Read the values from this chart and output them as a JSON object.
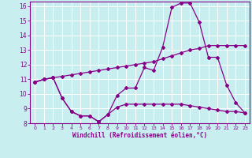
{
  "xlabel": "Windchill (Refroidissement éolien,°C)",
  "xlim": [
    -0.5,
    23.5
  ],
  "ylim": [
    8,
    16.3
  ],
  "yticks": [
    8,
    9,
    10,
    11,
    12,
    13,
    14,
    15,
    16
  ],
  "xticks": [
    0,
    1,
    2,
    3,
    4,
    5,
    6,
    7,
    8,
    9,
    10,
    11,
    12,
    13,
    14,
    15,
    16,
    17,
    18,
    19,
    20,
    21,
    22,
    23
  ],
  "background_color": "#c8eef0",
  "grid_color": "#ffffff",
  "line_color": "#880088",
  "lines": {
    "temp": {
      "x": [
        0,
        1,
        2,
        3,
        4,
        5,
        6,
        7,
        8,
        9,
        10,
        11,
        12,
        13,
        14,
        15,
        16,
        17,
        18,
        19,
        20,
        21,
        22,
        23
      ],
      "y": [
        10.8,
        11.0,
        11.1,
        11.2,
        11.3,
        11.4,
        11.5,
        11.6,
        11.7,
        11.8,
        11.9,
        12.0,
        12.1,
        12.2,
        12.4,
        12.6,
        12.8,
        13.0,
        13.1,
        13.3,
        13.3,
        13.3,
        13.3,
        13.3
      ]
    },
    "windchill": {
      "x": [
        0,
        1,
        2,
        3,
        4,
        5,
        6,
        7,
        8,
        9,
        10,
        11,
        12,
        13,
        14,
        15,
        16,
        17,
        18,
        19,
        20,
        21,
        22,
        23
      ],
      "y": [
        10.8,
        11.0,
        11.1,
        9.7,
        8.8,
        8.5,
        8.5,
        8.1,
        8.6,
        9.9,
        10.4,
        10.4,
        11.8,
        11.6,
        13.2,
        15.9,
        16.2,
        16.2,
        14.9,
        12.5,
        12.5,
        10.6,
        9.4,
        8.7
      ]
    },
    "lower": {
      "x": [
        0,
        1,
        2,
        3,
        4,
        5,
        6,
        7,
        8,
        9,
        10,
        11,
        12,
        13,
        14,
        15,
        16,
        17,
        18,
        19,
        20,
        21,
        22,
        23
      ],
      "y": [
        10.8,
        11.0,
        11.1,
        9.7,
        8.8,
        8.5,
        8.5,
        8.1,
        8.6,
        9.1,
        9.3,
        9.3,
        9.3,
        9.3,
        9.3,
        9.3,
        9.3,
        9.2,
        9.1,
        9.0,
        8.9,
        8.8,
        8.8,
        8.7
      ]
    }
  }
}
